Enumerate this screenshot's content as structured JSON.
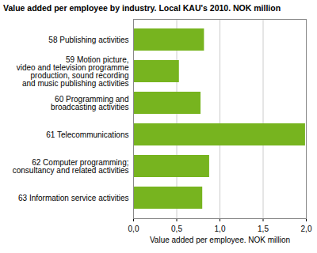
{
  "chart_data": {
    "type": "bar",
    "orientation": "horizontal",
    "title": "Value added per employee by industry. Local KAU's 2010. NOK million",
    "x_label": "Value added per employee. NOK million",
    "categories": [
      "58 Publishing activities",
      "59 Motion picture,\nvideo and television programme\nproduction, sound recording\nand music publishing activities",
      "60 Programming and\nbroadcasting activities",
      "61 Telecommunications",
      "62 Computer programming;\nconsultancy and related activities",
      "63 Information service activities"
    ],
    "values": [
      0.82,
      0.53,
      0.78,
      1.99,
      0.88,
      0.8
    ],
    "color": "#77b41f",
    "xlim": [
      0,
      2
    ],
    "xticks": [
      {
        "value": 0,
        "label": "0,0"
      },
      {
        "value": 0.5,
        "label": "0,5"
      },
      {
        "value": 1,
        "label": "1,0"
      },
      {
        "value": 1.5,
        "label": "1,5"
      },
      {
        "value": 2,
        "label": "2,0"
      }
    ],
    "grid": true
  }
}
